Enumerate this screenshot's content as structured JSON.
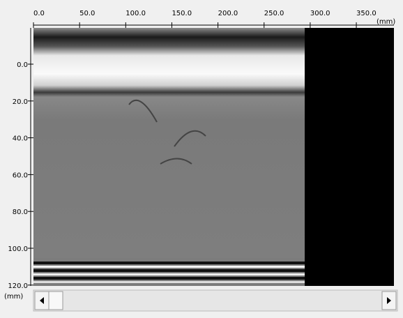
{
  "x_axis": {
    "unit": "(mm)",
    "ticks": [
      {
        "value": 0,
        "label": "0.0"
      },
      {
        "value": 50,
        "label": "50.0"
      },
      {
        "value": 100,
        "label": "100.0"
      },
      {
        "value": 150,
        "label": "150.0"
      },
      {
        "value": 200,
        "label": "200.0"
      },
      {
        "value": 250,
        "label": "250.0"
      },
      {
        "value": 300,
        "label": "300.0"
      },
      {
        "value": 350,
        "label": "350.0"
      }
    ]
  },
  "y_axis": {
    "unit": "(mm)",
    "ticks": [
      {
        "value": 0,
        "label": "0.0"
      },
      {
        "value": 20,
        "label": "20.0"
      },
      {
        "value": 40,
        "label": "40.0"
      },
      {
        "value": 60,
        "label": "60.0"
      },
      {
        "value": 80,
        "label": "80.0"
      },
      {
        "value": 100,
        "label": "100.0"
      },
      {
        "value": 120,
        "label": "120.0"
      }
    ]
  }
}
